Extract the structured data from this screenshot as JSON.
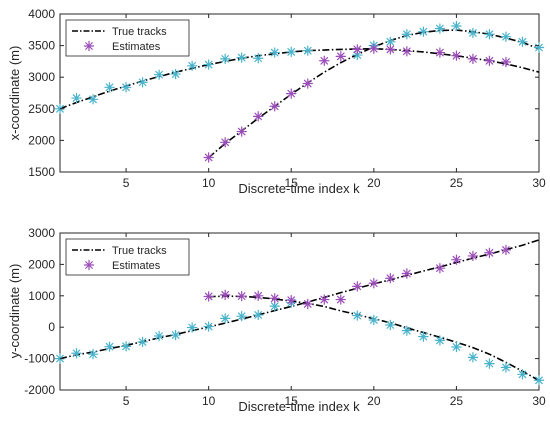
{
  "colors": {
    "true_track": "#000000",
    "estimate_track_1": "#4AB3CC",
    "estimate_track_2": "#9B4DB8",
    "axes": "#262626",
    "background": "#ffffff"
  },
  "legend_marker_icon": "asterisk-icon",
  "chart_data": [
    {
      "type": "line",
      "xlabel": "Discrete-time index k",
      "ylabel": "x-coordinate (m)",
      "xlim": [
        1,
        30
      ],
      "ylim": [
        1500,
        4000
      ],
      "xticks": [
        5,
        10,
        15,
        20,
        25,
        30
      ],
      "yticks": [
        1500,
        2000,
        2500,
        3000,
        3500,
        4000
      ],
      "xtick_labels": [
        "5",
        "10",
        "15",
        "20",
        "25",
        "30"
      ],
      "ytick_labels": [
        "1500",
        "2000",
        "2500",
        "3000",
        "3500",
        "4000"
      ],
      "grid": false,
      "legend_position": "top-left",
      "legend": [
        "True tracks",
        "Estimates"
      ],
      "series": [
        {
          "role": "true",
          "style": "dash-dot",
          "x": [
            1,
            2,
            3,
            4,
            5,
            6,
            7,
            8,
            9,
            10,
            11,
            12,
            13,
            14,
            15,
            16,
            17,
            18,
            19,
            20,
            21,
            22,
            23,
            24,
            25,
            26,
            27,
            28,
            29,
            30
          ],
          "y": [
            2500,
            2600,
            2690,
            2780,
            2860,
            2940,
            3010,
            3080,
            3140,
            3200,
            3250,
            3300,
            3340,
            3370,
            3400,
            3420,
            3430,
            3440,
            3445,
            3450,
            3440,
            3420,
            3400,
            3370,
            3340,
            3300,
            3260,
            3210,
            3150,
            3080
          ]
        },
        {
          "role": "true",
          "style": "dash-dot",
          "x": [
            10,
            11,
            12,
            13,
            14,
            15,
            16,
            17,
            18,
            19,
            20,
            21,
            22,
            23,
            24,
            25,
            26,
            27,
            28,
            29,
            30
          ],
          "y": [
            1730,
            1950,
            2150,
            2350,
            2540,
            2730,
            2910,
            3080,
            3230,
            3360,
            3480,
            3580,
            3660,
            3710,
            3740,
            3745,
            3720,
            3680,
            3620,
            3550,
            3450
          ]
        },
        {
          "role": "estimate",
          "marker": "asterisk",
          "color": "#4AB3CC",
          "x": [
            1,
            2,
            3,
            4,
            5,
            6,
            7,
            8,
            9,
            10,
            11,
            12,
            13,
            14,
            15,
            16,
            19,
            20,
            21,
            22,
            23,
            24,
            25,
            26,
            27,
            28,
            29,
            30
          ],
          "y": [
            2500,
            2670,
            2650,
            2840,
            2840,
            2920,
            3040,
            3050,
            3180,
            3200,
            3290,
            3310,
            3300,
            3390,
            3400,
            3420,
            3350,
            3500,
            3560,
            3680,
            3720,
            3770,
            3810,
            3700,
            3680,
            3640,
            3560,
            3470
          ]
        },
        {
          "role": "estimate",
          "marker": "asterisk",
          "color": "#9B4DB8",
          "x": [
            10,
            11,
            12,
            13,
            14,
            15,
            16,
            17,
            18,
            19,
            20,
            21,
            22,
            24,
            25,
            26,
            27,
            28
          ],
          "y": [
            1730,
            1970,
            2140,
            2380,
            2540,
            2740,
            2900,
            3260,
            3330,
            3440,
            3450,
            3440,
            3410,
            3390,
            3340,
            3290,
            3260,
            3240
          ]
        }
      ]
    },
    {
      "type": "line",
      "xlabel": "Discrete-time index k",
      "ylabel": "y-coordinate (m)",
      "xlim": [
        1,
        30
      ],
      "ylim": [
        -2000,
        3000
      ],
      "xticks": [
        5,
        10,
        15,
        20,
        25,
        30
      ],
      "yticks": [
        -2000,
        -1000,
        0,
        1000,
        2000,
        3000
      ],
      "xtick_labels": [
        "5",
        "10",
        "15",
        "20",
        "25",
        "30"
      ],
      "ytick_labels": [
        "-2000",
        "-1000",
        "0",
        "1000",
        "2000",
        "3000"
      ],
      "grid": false,
      "legend_position": "top-left",
      "legend": [
        "True tracks",
        "Estimates"
      ],
      "series": [
        {
          "role": "true",
          "style": "dash-dot",
          "x": [
            1,
            2,
            3,
            4,
            5,
            6,
            7,
            8,
            9,
            10,
            11,
            12,
            13,
            14,
            15,
            16,
            17,
            18,
            19,
            20,
            21,
            22,
            23,
            24,
            25,
            26,
            27,
            28,
            29,
            30
          ],
          "y": [
            -1000,
            -880,
            -790,
            -680,
            -580,
            -460,
            -340,
            -230,
            -110,
            10,
            130,
            260,
            390,
            530,
            660,
            800,
            950,
            1100,
            1240,
            1380,
            1510,
            1650,
            1790,
            1920,
            2060,
            2200,
            2330,
            2470,
            2610,
            2780
          ]
        },
        {
          "role": "true",
          "style": "dash-dot",
          "x": [
            10,
            11,
            12,
            13,
            14,
            15,
            16,
            17,
            18,
            19,
            20,
            21,
            22,
            23,
            24,
            25,
            26,
            27,
            28,
            29,
            30
          ],
          "y": [
            970,
            990,
            980,
            950,
            900,
            830,
            760,
            660,
            520,
            400,
            270,
            140,
            -20,
            -170,
            -320,
            -480,
            -650,
            -860,
            -1120,
            -1400,
            -1700
          ]
        },
        {
          "role": "estimate",
          "marker": "asterisk",
          "color": "#4AB3CC",
          "x": [
            1,
            2,
            3,
            4,
            5,
            6,
            7,
            8,
            9,
            10,
            11,
            12,
            13,
            14,
            15,
            19,
            20,
            21,
            22,
            23,
            24,
            25,
            26,
            27,
            28,
            29,
            30
          ],
          "y": [
            -1000,
            -830,
            -860,
            -620,
            -610,
            -470,
            -280,
            -250,
            -10,
            20,
            280,
            350,
            390,
            670,
            780,
            370,
            230,
            70,
            -110,
            -300,
            -420,
            -630,
            -960,
            -1160,
            -1280,
            -1500,
            -1690
          ]
        },
        {
          "role": "estimate",
          "marker": "asterisk",
          "color": "#9B4DB8",
          "x": [
            10,
            11,
            12,
            13,
            14,
            15,
            16,
            17,
            18,
            19,
            20,
            21,
            22,
            24,
            25,
            26,
            27,
            28
          ],
          "y": [
            980,
            1030,
            990,
            1000,
            920,
            860,
            740,
            880,
            880,
            1300,
            1400,
            1560,
            1710,
            1880,
            2150,
            2270,
            2370,
            2460
          ]
        }
      ]
    }
  ]
}
